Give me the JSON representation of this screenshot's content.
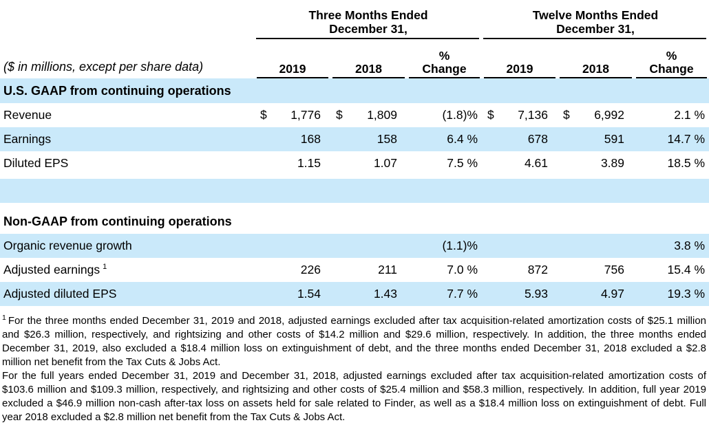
{
  "header": {
    "caption": "($ in millions, except per share data)",
    "group1_line1": "Three Months Ended",
    "group1_line2": "December 31,",
    "group2_line1": "Twelve Months Ended",
    "group2_line2": "December 31,",
    "col_2019": "2019",
    "col_2018": "2018",
    "pct_top": "%",
    "pct_bottom": "Change"
  },
  "sections": {
    "gaap_title": "U.S. GAAP from continuing operations",
    "nongaap_title": "Non-GAAP from continuing operations"
  },
  "rows": {
    "revenue": {
      "label": "Revenue",
      "d1": "$",
      "v1": "1,776",
      "d2": "$",
      "v2": "1,809",
      "p1": "(1.8)%",
      "d3": "$",
      "v3": "7,136",
      "d4": "$",
      "v4": "6,992",
      "p2": "2.1 %"
    },
    "earnings": {
      "label": "Earnings",
      "v1": "168",
      "v2": "158",
      "p1": "6.4 %",
      "v3": "678",
      "v4": "591",
      "p2": "14.7 %"
    },
    "diluted_eps": {
      "label": "Diluted EPS",
      "v1": "1.15",
      "v2": "1.07",
      "p1": "7.5 %",
      "v3": "4.61",
      "v4": "3.89",
      "p2": "18.5 %"
    },
    "organic": {
      "label": "Organic revenue growth",
      "p1": "(1.1)%",
      "p2": "3.8 %"
    },
    "adj_earnings": {
      "label": "Adjusted earnings",
      "sup": "1",
      "v1": "226",
      "v2": "211",
      "p1": "7.0 %",
      "v3": "872",
      "v4": "756",
      "p2": "15.4 %"
    },
    "adj_eps": {
      "label": "Adjusted diluted EPS",
      "v1": "1.54",
      "v2": "1.43",
      "p1": "7.7 %",
      "v3": "5.93",
      "v4": "4.97",
      "p2": "19.3 %"
    }
  },
  "footnote": {
    "marker": "1",
    "para1": "For the three months ended December 31, 2019 and 2018, adjusted earnings excluded after tax acquisition-related amortization costs of $25.1 million and $26.3 million, respectively, and rightsizing and other costs of $14.2 million and $29.6 million, respectively. In addition, the three months ended December 31, 2019, also excluded a $18.4 million loss on extinguishment of debt, and the three months ended December 31, 2018 excluded a $2.8 million net benefit from the Tax Cuts & Jobs Act.",
    "para2": "For the full years ended December 31, 2019 and December 31, 2018, adjusted earnings excluded after tax acquisition-related amortization costs of $103.6 million and $109.3 million, respectively, and rightsizing and other costs of $25.4 million and $58.3 million, respectively. In addition, full year 2019 excluded a $46.9 million non-cash after-tax loss on assets held for sale related to Finder, as well as a $18.4 million loss on extinguishment of debt. Full year 2018 excluded a $2.8 million net benefit from the Tax Cuts & Jobs Act."
  },
  "colors": {
    "stripe_blue": "#CAE9FA",
    "text": "#000000",
    "rule": "#000000"
  }
}
